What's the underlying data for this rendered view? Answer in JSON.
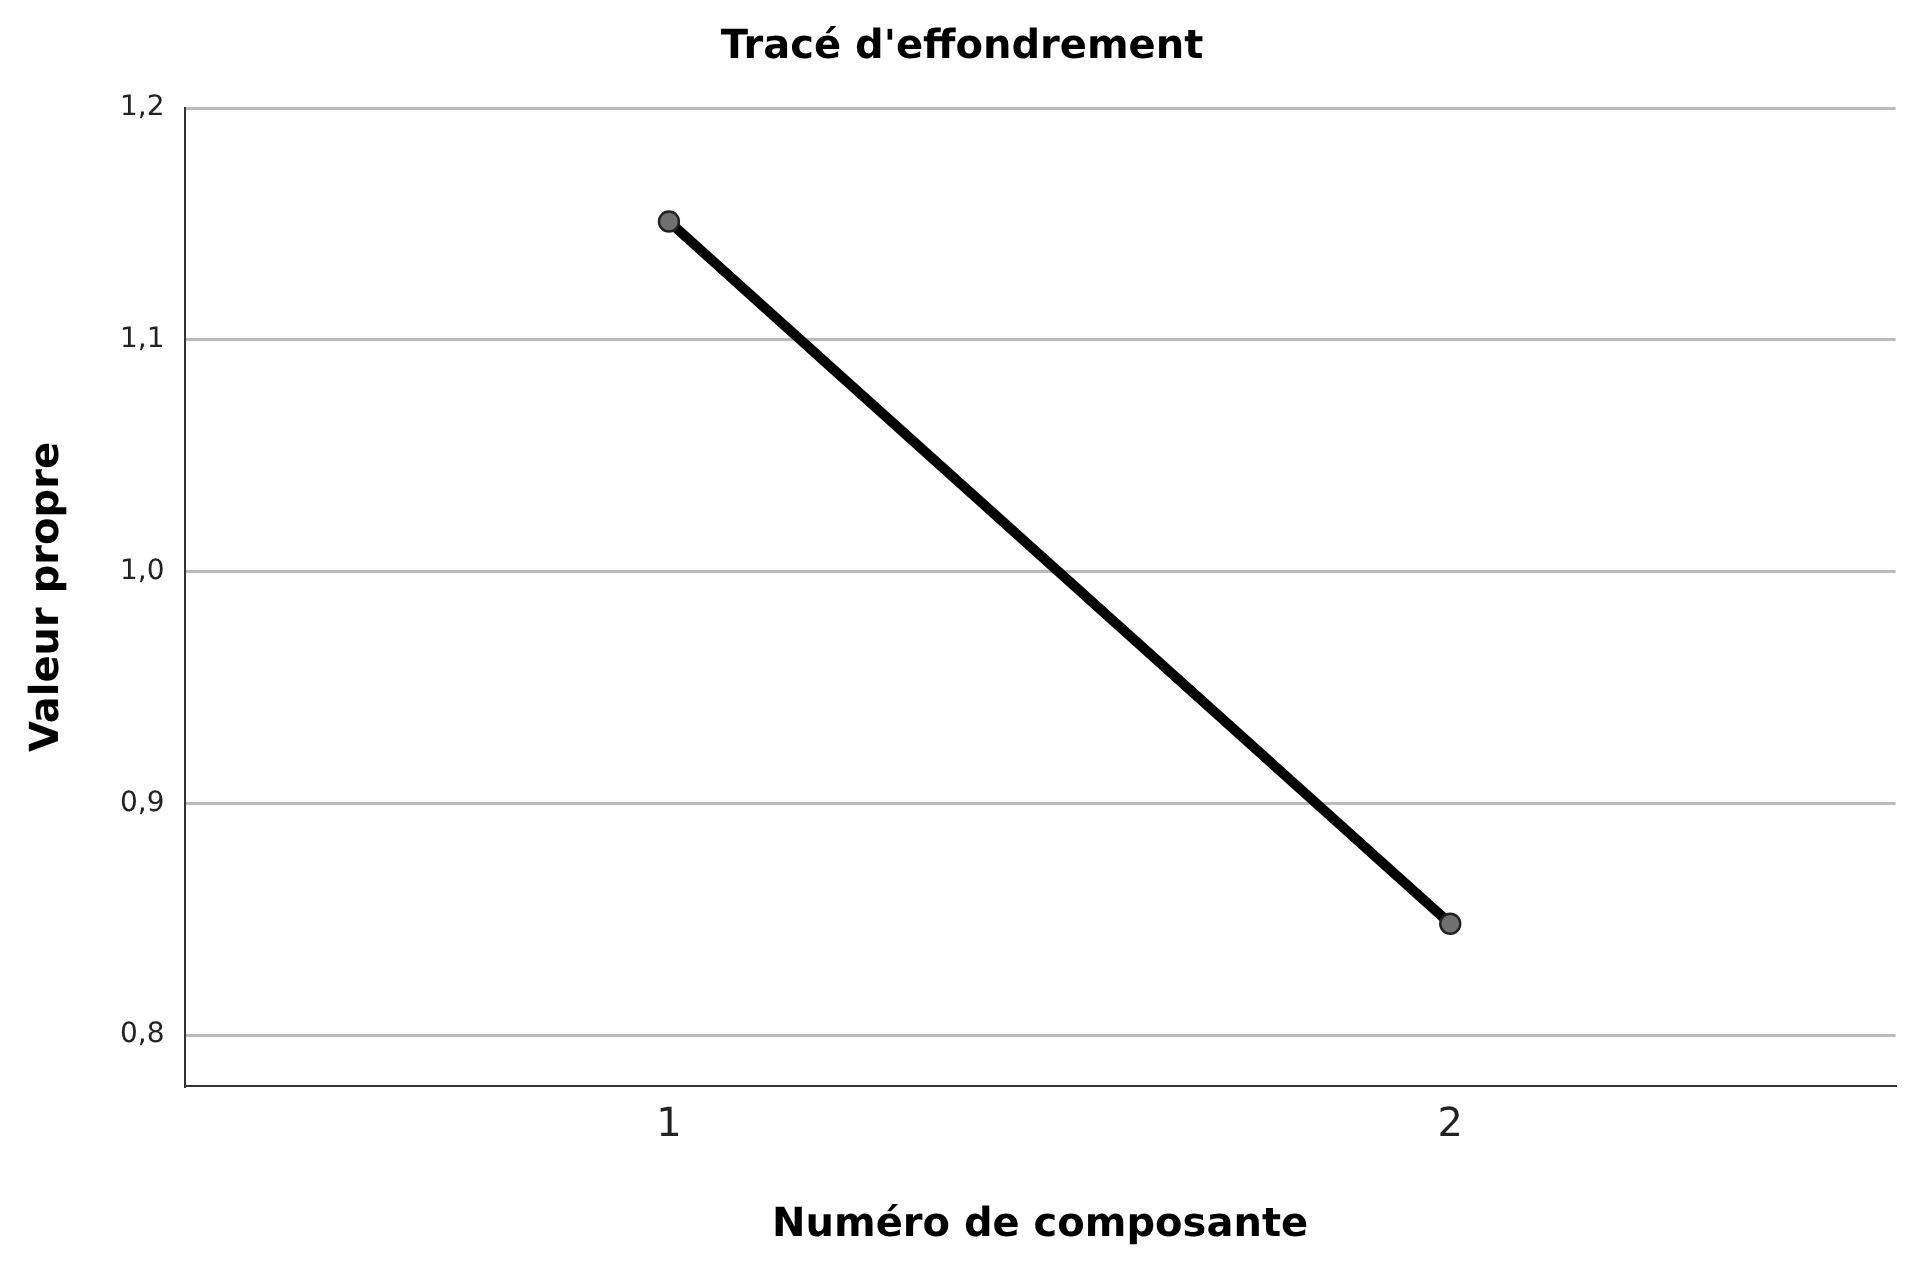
{
  "chart_data": {
    "type": "line",
    "title": "Tracé d'effondrement",
    "xlabel": "Numéro de composante",
    "ylabel": "Valeur propre",
    "x": [
      1,
      2
    ],
    "series": [
      {
        "color": "#000000",
        "values": [
          1.151,
          0.848
        ]
      }
    ],
    "xlim": [
      0.38,
      2.57
    ],
    "xticks": [
      1,
      2
    ],
    "ylim": [
      0.778,
      1.2
    ],
    "yticks": [
      {
        "value": 0.8,
        "label": "0,8"
      },
      {
        "value": 0.9,
        "label": "0,9"
      },
      {
        "value": 1.0,
        "label": "1,0"
      },
      {
        "value": 1.1,
        "label": "1,1"
      },
      {
        "value": 1.2,
        "label": "1,2"
      }
    ],
    "grid": "y",
    "legend": false,
    "marker": "circle",
    "line_style": "solid"
  }
}
